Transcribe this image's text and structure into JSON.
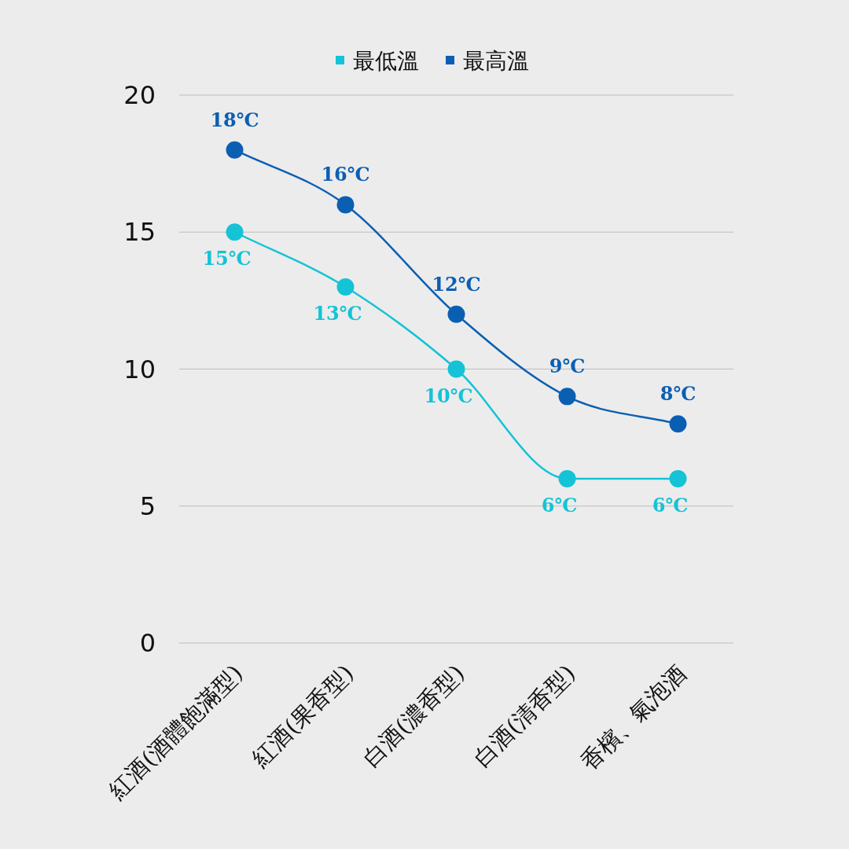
{
  "chart_data": {
    "type": "line",
    "categories": [
      "紅酒(酒體飽滿型)",
      "紅酒(果香型)",
      "白酒(濃香型)",
      "白酒(清香型)",
      "香檳、氣泡酒"
    ],
    "series": [
      {
        "name": "最低溫",
        "color": "#14c3d6",
        "values": [
          15,
          13,
          10,
          6,
          6
        ],
        "value_labels": [
          "15℃",
          "13℃",
          "10℃",
          "6℃",
          "6℃"
        ]
      },
      {
        "name": "最高溫",
        "color": "#0b5fb3",
        "values": [
          18,
          16,
          12,
          9,
          8
        ],
        "value_labels": [
          "18℃",
          "16℃",
          "12℃",
          "9℃",
          "8℃"
        ]
      }
    ],
    "ylim": [
      0,
      20
    ],
    "yticks": [
      0,
      5,
      10,
      15,
      20
    ],
    "grid": "y",
    "legend": "top",
    "marker": "circle",
    "line_style": "solid"
  }
}
